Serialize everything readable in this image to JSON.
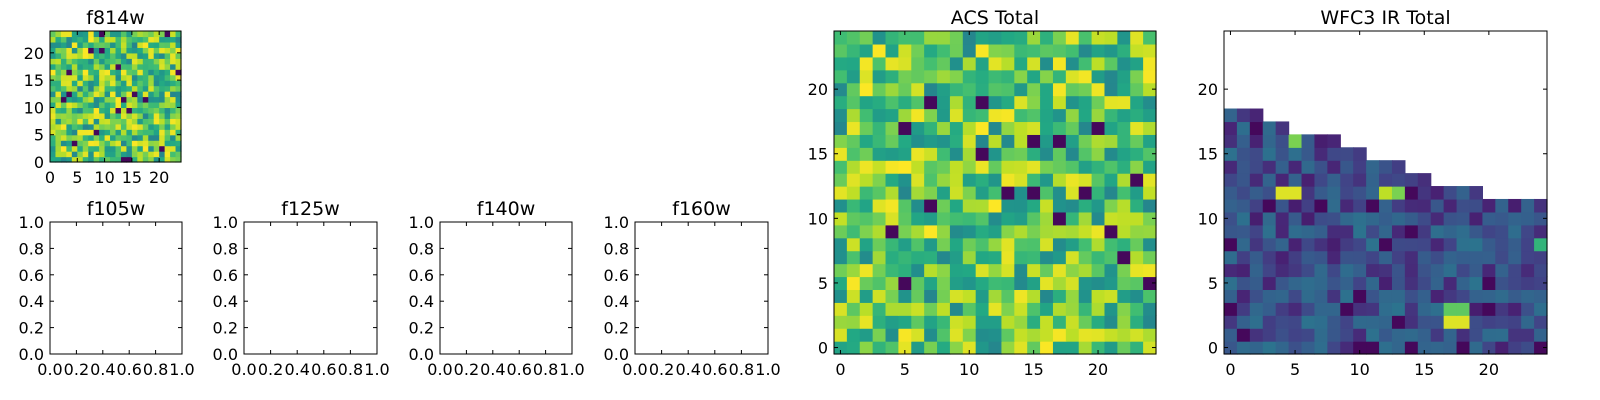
{
  "figure": {
    "colormap": "viridis"
  },
  "chart_data": [
    {
      "id": "f814w",
      "type": "heatmap",
      "title": "f814w",
      "xlim": [
        0,
        24
      ],
      "ylim": [
        0,
        24
      ],
      "xticks": [
        "0",
        "5",
        "10",
        "15",
        "20"
      ],
      "yticks": [
        "0",
        "5",
        "10",
        "15",
        "20"
      ],
      "grid_size": 24,
      "value_range": [
        0.0,
        1.0
      ],
      "coverage": "full",
      "features": "uniform field of mostly mid-to-high values with a few isolated low (dark purple) pixels"
    },
    {
      "id": "f105w",
      "type": "empty",
      "title": "f105w",
      "xlim": [
        0,
        1
      ],
      "ylim": [
        0,
        1
      ],
      "xticks": [
        "0.0",
        "0.2",
        "0.4",
        "0.6",
        "0.8",
        "1.0"
      ],
      "yticks": [
        "0.0",
        "0.2",
        "0.4",
        "0.6",
        "0.8",
        "1.0"
      ]
    },
    {
      "id": "f125w",
      "type": "empty",
      "title": "f125w",
      "xlim": [
        0,
        1
      ],
      "ylim": [
        0,
        1
      ],
      "xticks": [
        "0.0",
        "0.2",
        "0.4",
        "0.6",
        "0.8",
        "1.0"
      ],
      "yticks": [
        "0.0",
        "0.2",
        "0.4",
        "0.6",
        "0.8",
        "1.0"
      ]
    },
    {
      "id": "f140w",
      "type": "empty",
      "title": "f140w",
      "xlim": [
        0,
        1
      ],
      "ylim": [
        0,
        1
      ],
      "xticks": [
        "0.0",
        "0.2",
        "0.4",
        "0.6",
        "0.8",
        "1.0"
      ],
      "yticks": [
        "0.0",
        "0.2",
        "0.4",
        "0.6",
        "0.8",
        "1.0"
      ]
    },
    {
      "id": "f160w",
      "type": "empty",
      "title": "f160w",
      "xlim": [
        0,
        1
      ],
      "ylim": [
        0,
        1
      ],
      "xticks": [
        "0.0",
        "0.2",
        "0.4",
        "0.6",
        "0.8",
        "1.0"
      ],
      "yticks": [
        "0.0",
        "0.2",
        "0.4",
        "0.6",
        "0.8",
        "1.0"
      ]
    },
    {
      "id": "acs-total",
      "type": "heatmap",
      "title": "ACS Total",
      "xlim": [
        -0.5,
        24.5
      ],
      "ylim": [
        -0.5,
        24.5
      ],
      "xticks": [
        "0",
        "5",
        "10",
        "15",
        "20"
      ],
      "yticks": [
        "0",
        "5",
        "10",
        "15",
        "20"
      ],
      "grid_size": 25,
      "value_range": [
        0.0,
        1.0
      ],
      "coverage": "full",
      "features": "mostly green-yellow values with scattered isolated dark purple low pixels"
    },
    {
      "id": "wfc3-ir-total",
      "type": "heatmap",
      "title": "WFC3 IR Total",
      "xlim": [
        -0.5,
        24.5
      ],
      "ylim": [
        -0.5,
        24.5
      ],
      "xticks": [
        "0",
        "5",
        "10",
        "15",
        "20"
      ],
      "yticks": [
        "0",
        "5",
        "10",
        "15",
        "20"
      ],
      "grid_size": 25,
      "value_range": [
        0.0,
        1.0
      ],
      "coverage": "partial",
      "column_top_row": [
        18,
        18,
        18,
        17,
        17,
        16,
        16,
        16,
        16,
        15,
        15,
        14,
        14,
        14,
        13,
        13,
        12,
        12,
        12,
        12,
        11,
        11,
        11,
        11,
        11
      ],
      "bright_spots": [
        {
          "x": 4,
          "y": 12,
          "value": 0.95
        },
        {
          "x": 5,
          "y": 12,
          "value": 0.95
        },
        {
          "x": 5,
          "y": 16,
          "value": 0.8
        },
        {
          "x": 12,
          "y": 12,
          "value": 0.9
        },
        {
          "x": 13,
          "y": 12,
          "value": 0.8
        },
        {
          "x": 17,
          "y": 2,
          "value": 0.95
        },
        {
          "x": 18,
          "y": 2,
          "value": 0.95
        },
        {
          "x": 17,
          "y": 3,
          "value": 0.75
        },
        {
          "x": 18,
          "y": 3,
          "value": 0.75
        },
        {
          "x": 24,
          "y": 8,
          "value": 0.65
        }
      ],
      "features": "upper-right region has no data; remaining field mostly low (dark blue/purple) values with a few bright spots"
    }
  ]
}
